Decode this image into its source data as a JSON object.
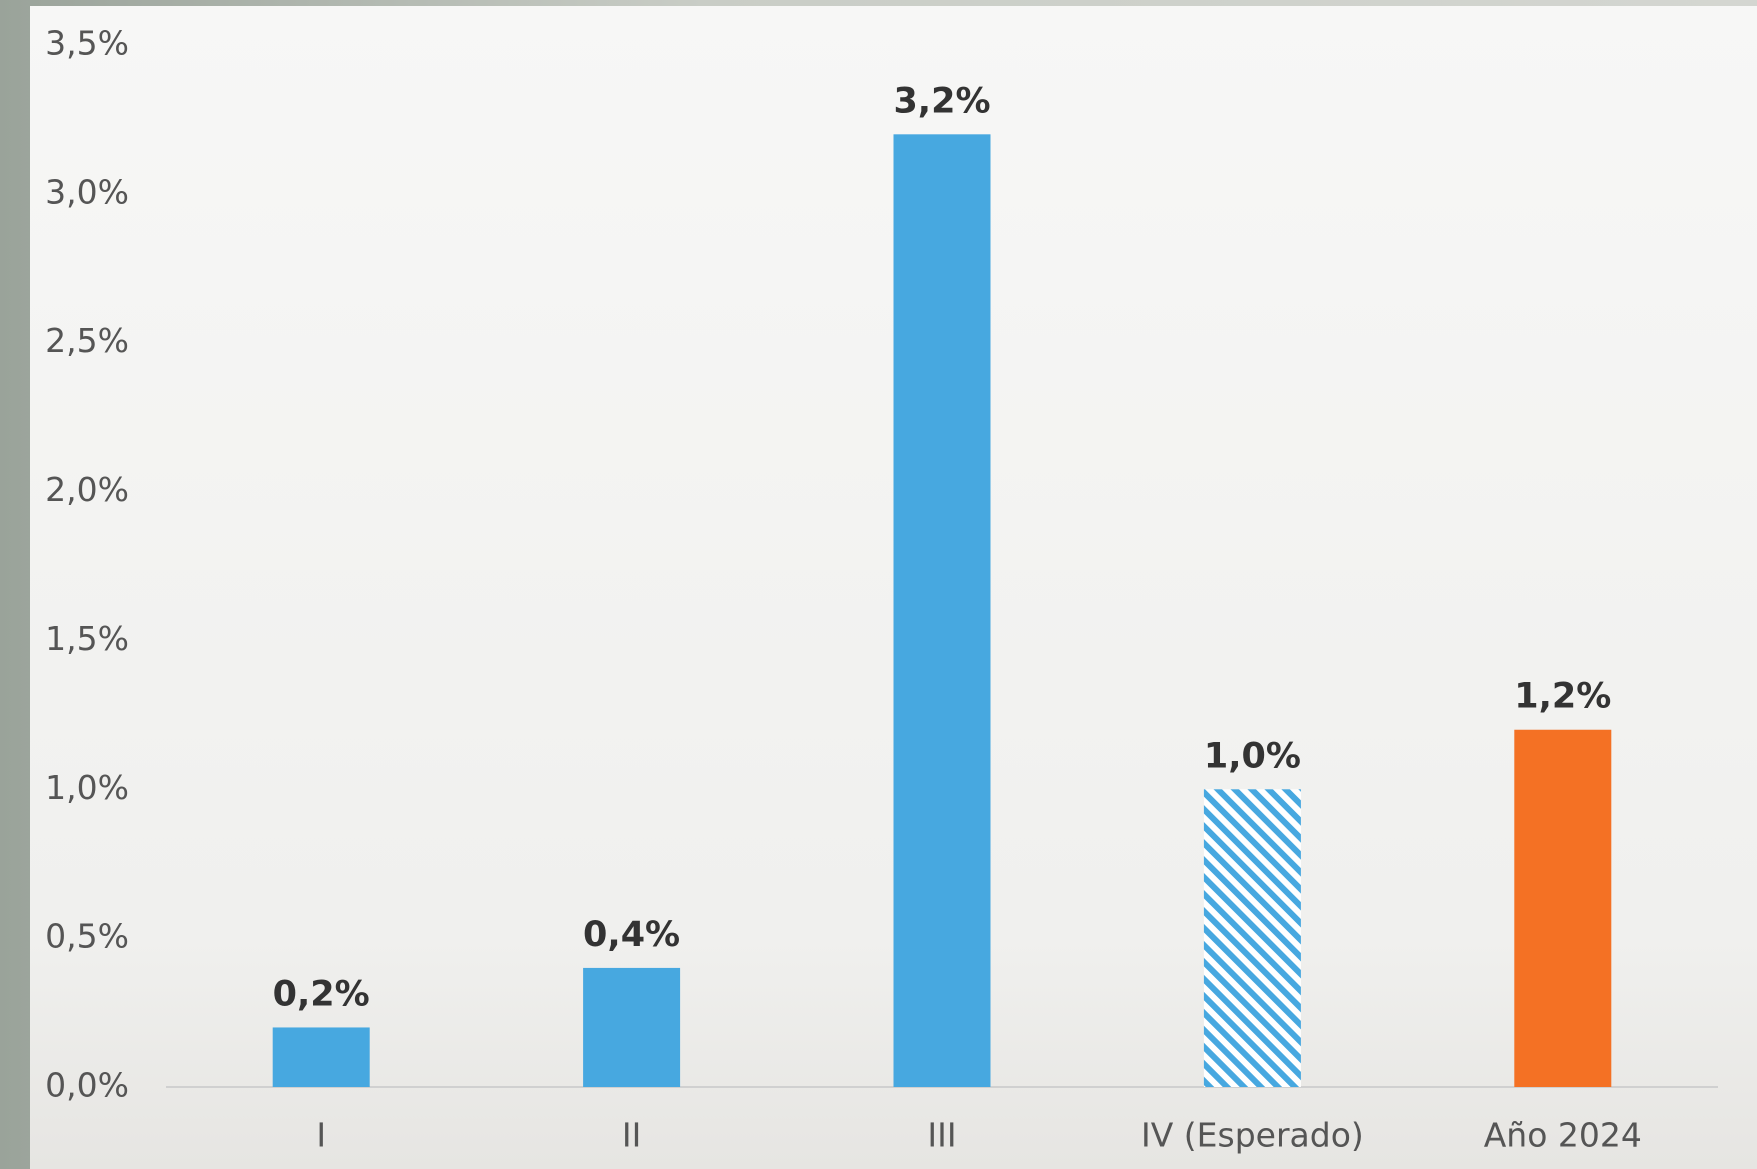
{
  "chart_data": {
    "type": "bar",
    "categories": [
      "I",
      "II",
      "III",
      "IV (Esperado)",
      "Año 2024"
    ],
    "values": [
      0.2,
      0.4,
      3.2,
      1.0,
      1.2
    ],
    "value_labels": [
      "0,2%",
      "0,4%",
      "3,2%",
      "1,0%",
      "1,2%"
    ],
    "colors": [
      "#47a8e0",
      "#47a8e0",
      "#47a8e0",
      "#47a8e0",
      "#f47124"
    ],
    "hatched": [
      false,
      false,
      false,
      true,
      false
    ],
    "ylim": [
      0,
      3.5
    ],
    "yticks": [
      {
        "value": 0,
        "label": "0,0%"
      },
      {
        "value": 0.5,
        "label": "0,5%"
      },
      {
        "value": 1,
        "label": "1,0%"
      },
      {
        "value": 1.5,
        "label": "1,5%"
      },
      {
        "value": 2,
        "label": "2,0%"
      },
      {
        "value": 2.5,
        "label": "2,5%"
      },
      {
        "value": 3,
        "label": "3,0%"
      },
      {
        "value": 3.5,
        "label": "3,5%"
      }
    ],
    "grid": false
  }
}
